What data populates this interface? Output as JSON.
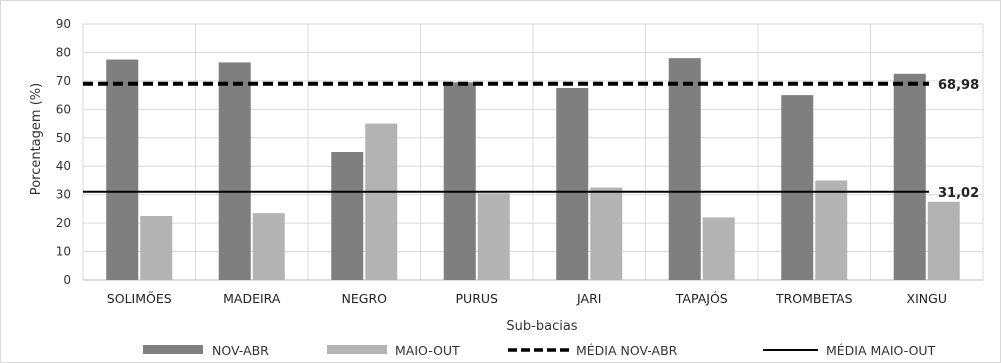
{
  "chart_data": {
    "type": "bar",
    "xlabel": "Sub-bacias",
    "ylabel": "Porcentagem (%)",
    "ylim": [
      0,
      90
    ],
    "yticks": [
      0,
      10,
      20,
      30,
      40,
      50,
      60,
      70,
      80,
      90
    ],
    "grid": true,
    "legend_position": "bottom",
    "categories": [
      "SOLIMÕES",
      "MADEIRA",
      "NEGRO",
      "PURUS",
      "JARI",
      "TAPAJÓS",
      "TROMBETAS",
      "XINGU"
    ],
    "series": [
      {
        "name": "NOV-ABR",
        "color": "#7f7f7f",
        "values": [
          77.5,
          76.5,
          45,
          69.5,
          67.5,
          78,
          65,
          72.5
        ]
      },
      {
        "name": "MAIO-OUT",
        "color": "#b3b3b3",
        "values": [
          22.5,
          23.5,
          55,
          30.5,
          32.5,
          22,
          35,
          27.5
        ]
      }
    ],
    "reference_lines": [
      {
        "name": "MÉDIA NOV-ABR",
        "value": 68.98,
        "label": "68,98",
        "style": "dashed",
        "color": "#000000"
      },
      {
        "name": "MÉDIA MAIO-OUT",
        "value": 31.02,
        "label": "31,02",
        "style": "solid",
        "color": "#000000"
      }
    ]
  }
}
